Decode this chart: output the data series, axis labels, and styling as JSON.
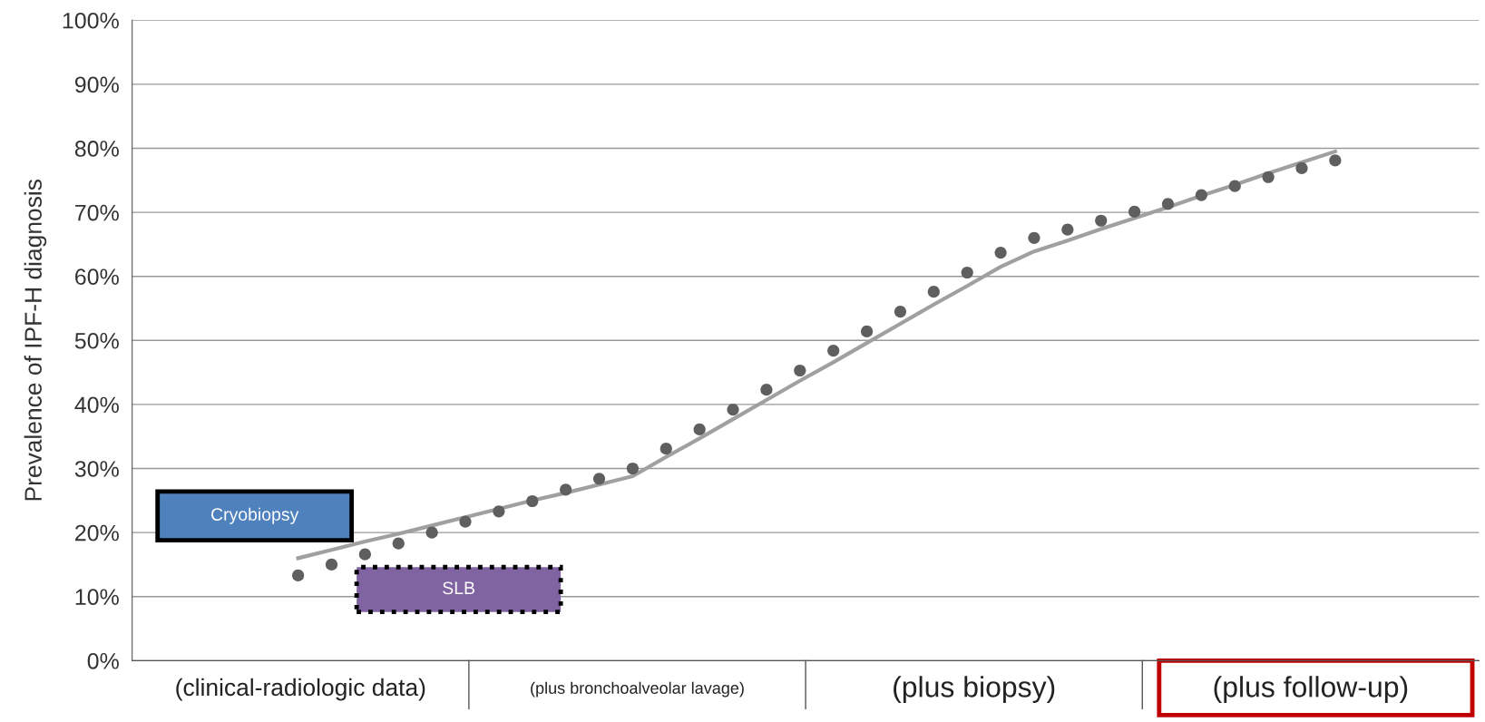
{
  "chart_data": {
    "type": "scatter",
    "ylabel": "Prevalence of IPF-H diagnosis",
    "categories": [
      null,
      null,
      null,
      null,
      null,
      null,
      null,
      null,
      null,
      null,
      null,
      null,
      null,
      null,
      null,
      null,
      null,
      null,
      null,
      null,
      null,
      null,
      null,
      null,
      null,
      null,
      null,
      null,
      null,
      null,
      null,
      null
    ],
    "series": [
      {
        "color": "#5f5f5f",
        "marker": "circle",
        "values": [
          13.3,
          15.0,
          16.6,
          18.3,
          20.0,
          21.7,
          23.3,
          24.9,
          26.7,
          28.4,
          30.0,
          33.1,
          36.1,
          39.2,
          42.3,
          45.3,
          48.4,
          51.4,
          54.5,
          57.6,
          60.6,
          63.7,
          66.0,
          67.3,
          68.7,
          70.1,
          71.3,
          72.7,
          74.1,
          75.5,
          76.9,
          78.1
        ]
      },
      {
        "type": "line",
        "color": "#a0a0a0",
        "line_style": "solid",
        "values": [
          16.0,
          17.3,
          18.6,
          19.8,
          21.1,
          22.4,
          23.7,
          25.0,
          26.2,
          27.5,
          28.8,
          31.8,
          34.7,
          37.7,
          40.7,
          43.7,
          46.6,
          49.6,
          52.6,
          55.6,
          58.5,
          61.5,
          63.9,
          65.6,
          67.4,
          69.1,
          70.8,
          72.6,
          74.3,
          76.1,
          77.8,
          79.5
        ]
      }
    ],
    "ylim": [
      0,
      100
    ],
    "yticks": [
      {
        "value": 0,
        "label": "0%"
      },
      {
        "value": 10,
        "label": "10%"
      },
      {
        "value": 20,
        "label": "20%"
      },
      {
        "value": 30,
        "label": "30%"
      },
      {
        "value": 40,
        "label": "40%"
      },
      {
        "value": 50,
        "label": "50%"
      },
      {
        "value": 60,
        "label": "60%"
      },
      {
        "value": 70,
        "label": "70%"
      },
      {
        "value": 80,
        "label": "80%"
      },
      {
        "value": 90,
        "label": "90%"
      },
      {
        "value": 100,
        "label": "100%"
      }
    ],
    "grid": "y",
    "tick_labels": "y",
    "legend": false,
    "annotations": [
      "Cryobiopsy",
      "SLB",
      "(clinical-radiologic data)",
      "(plus bronchoalveolar lavage)",
      "(plus biopsy)",
      "(plus follow-up)"
    ]
  }
}
